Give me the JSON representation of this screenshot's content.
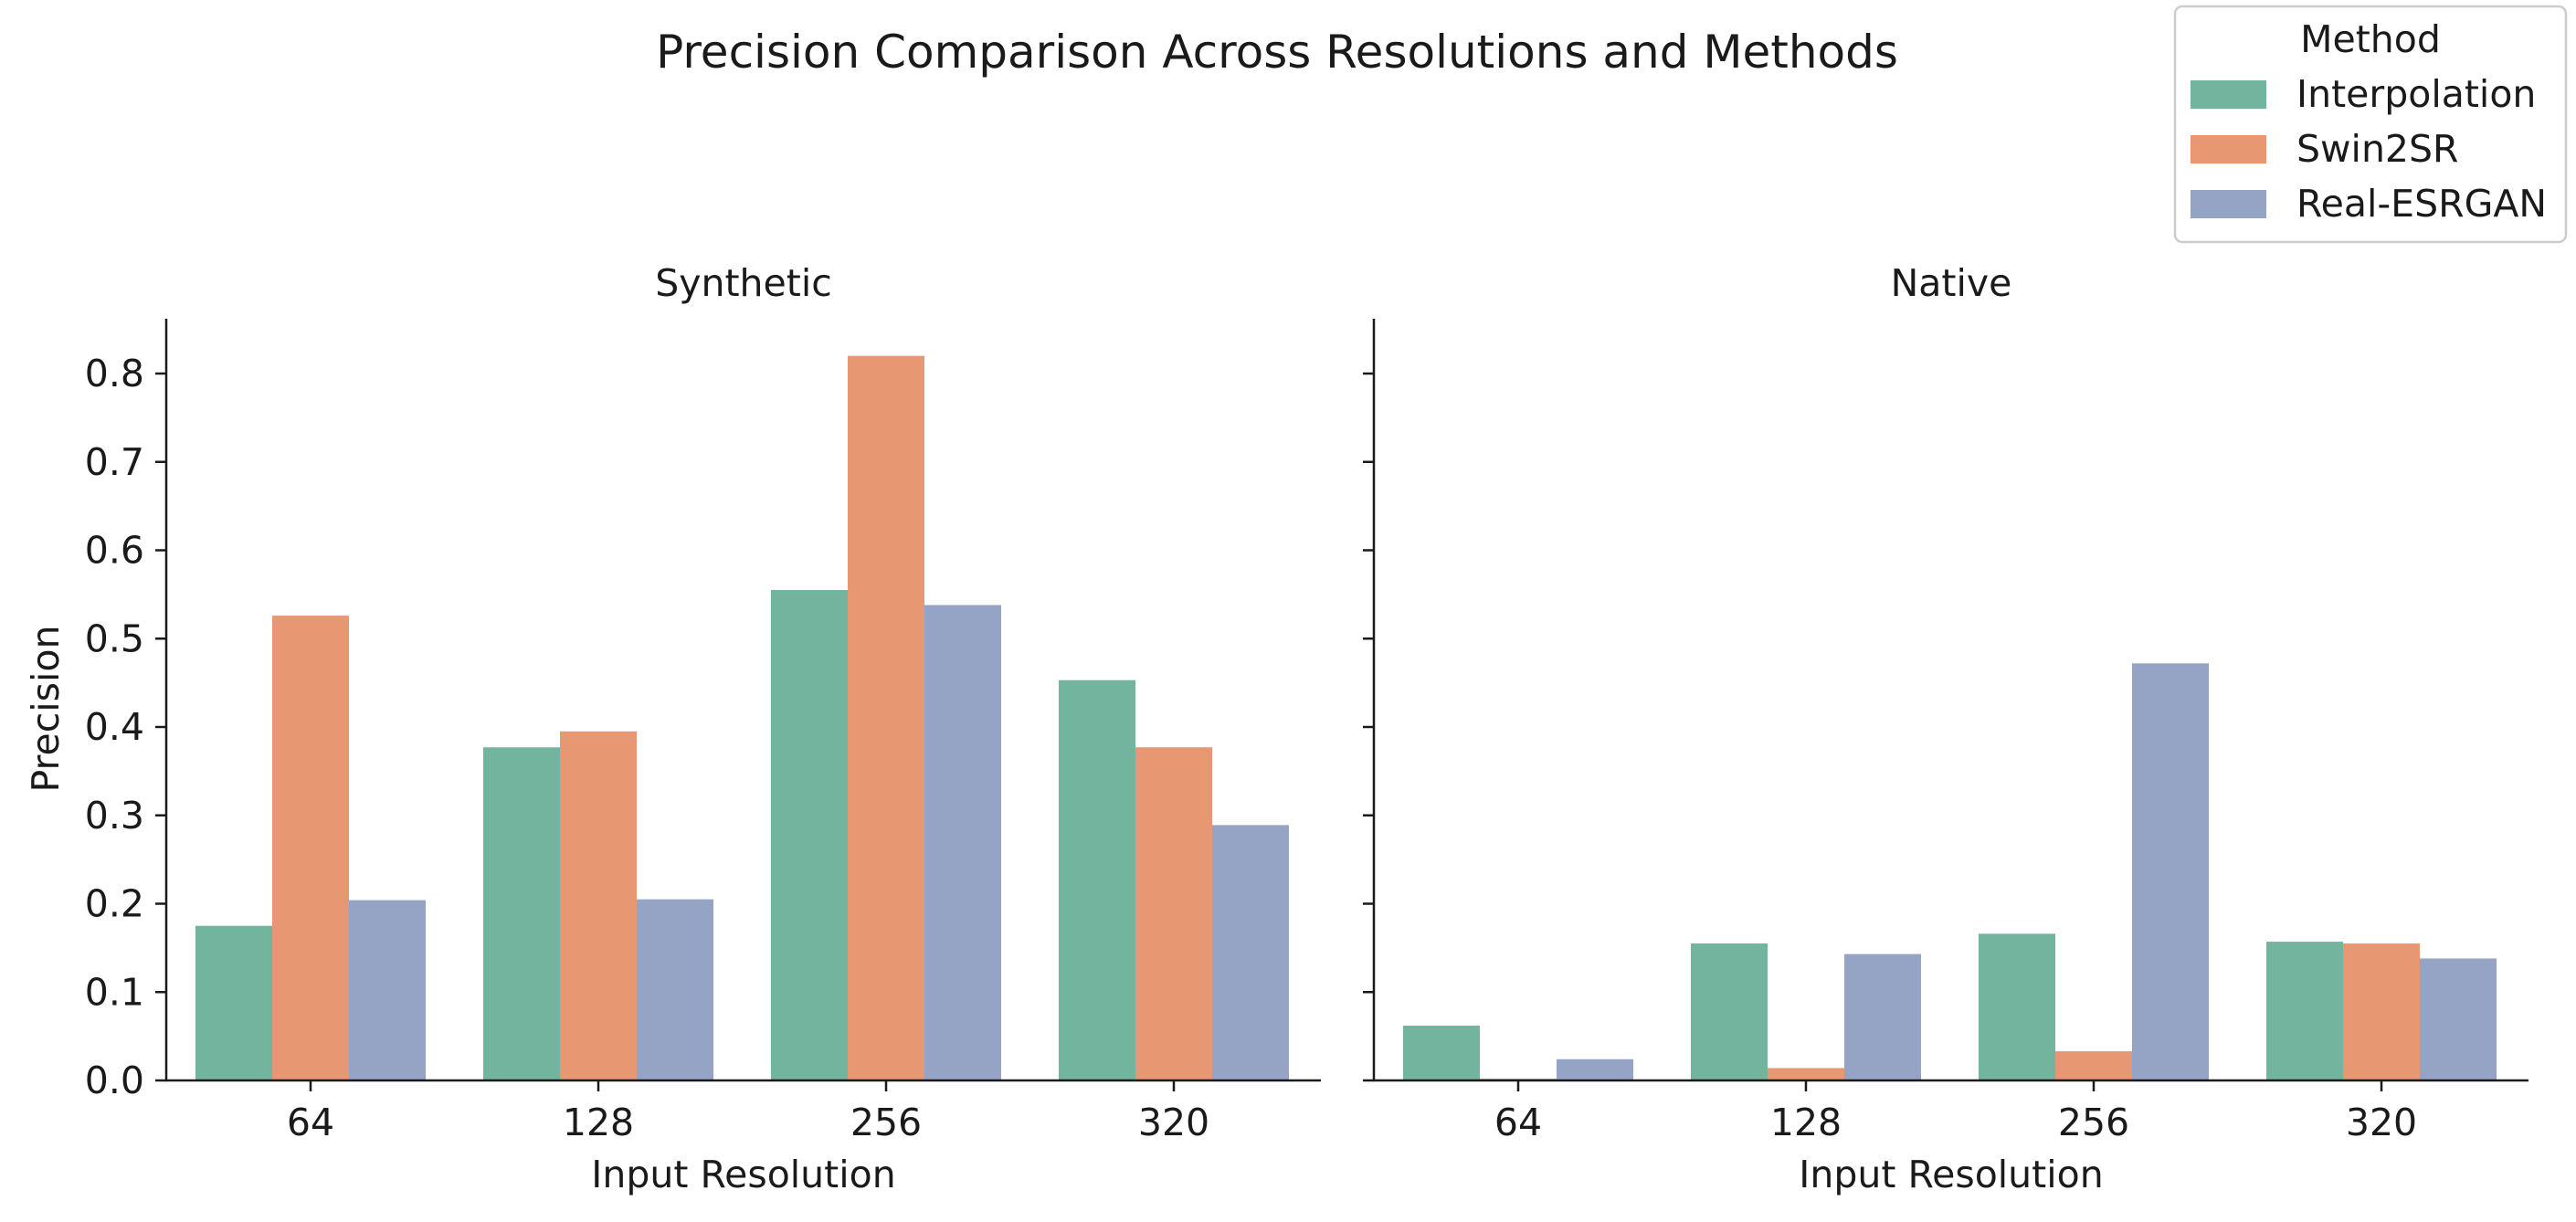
{
  "chart_data": {
    "type": "bar",
    "title": "Precision Comparison Across Resolutions and Methods",
    "ylabel": "Precision",
    "xlabel": "Input Resolution",
    "ylim": [
      0,
      0.86
    ],
    "yticks": [
      "0.0",
      "0.1",
      "0.2",
      "0.3",
      "0.4",
      "0.5",
      "0.6",
      "0.7",
      "0.8"
    ],
    "categories": [
      "64",
      "128",
      "256",
      "320"
    ],
    "legend": {
      "title": "Method",
      "position": "top-right",
      "entries": [
        "Interpolation",
        "Swin2SR",
        "Real-ESRGAN"
      ]
    },
    "colors": {
      "Interpolation": "#73b49f",
      "Swin2SR": "#e79873",
      "Real-ESRGAN": "#95a4c4"
    },
    "facets": [
      {
        "title": "Synthetic",
        "series": [
          {
            "name": "Interpolation",
            "values": [
              0.175,
              0.377,
              0.555,
              0.453
            ]
          },
          {
            "name": "Swin2SR",
            "values": [
              0.526,
              0.395,
              0.82,
              0.377
            ]
          },
          {
            "name": "Real-ESRGAN",
            "values": [
              0.204,
              0.205,
              0.538,
              0.289
            ]
          }
        ]
      },
      {
        "title": "Native",
        "series": [
          {
            "name": "Interpolation",
            "values": [
              0.062,
              0.155,
              0.166,
              0.157
            ]
          },
          {
            "name": "Swin2SR",
            "values": [
              0.002,
              0.014,
              0.033,
              0.155
            ]
          },
          {
            "name": "Real-ESRGAN",
            "values": [
              0.024,
              0.143,
              0.472,
              0.138
            ]
          }
        ]
      }
    ]
  }
}
